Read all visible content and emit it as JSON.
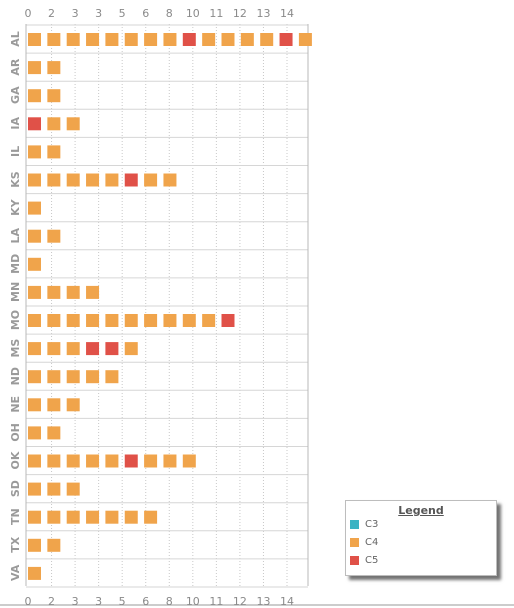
{
  "chart_data": {
    "type": "scatter",
    "x_ticks": [
      "0",
      "2",
      "3",
      "3",
      "5",
      "6",
      "8",
      "10",
      "11",
      "12",
      "13",
      "14"
    ],
    "categories": [
      "AL",
      "AR",
      "GA",
      "IA",
      "IL",
      "KS",
      "KY",
      "LA",
      "MD",
      "MN",
      "MO",
      "MS",
      "ND",
      "NE",
      "OH",
      "OK",
      "SD",
      "TN",
      "TX",
      "VA"
    ],
    "rows": [
      {
        "state": "AL",
        "cells": [
          "C4",
          "C4",
          "C4",
          "C4",
          "C4",
          "C4",
          "C4",
          "C4",
          "C5",
          "C4",
          "C4",
          "C4",
          "C4",
          "C5",
          "C4"
        ]
      },
      {
        "state": "AR",
        "cells": [
          "C4",
          "C4"
        ]
      },
      {
        "state": "GA",
        "cells": [
          "C4",
          "C4"
        ]
      },
      {
        "state": "IA",
        "cells": [
          "C5",
          "C4",
          "C4"
        ]
      },
      {
        "state": "IL",
        "cells": [
          "C4",
          "C4"
        ]
      },
      {
        "state": "KS",
        "cells": [
          "C4",
          "C4",
          "C4",
          "C4",
          "C4",
          "C5",
          "C4",
          "C4"
        ]
      },
      {
        "state": "KY",
        "cells": [
          "C4"
        ]
      },
      {
        "state": "LA",
        "cells": [
          "C4",
          "C4"
        ]
      },
      {
        "state": "MD",
        "cells": [
          "C4"
        ]
      },
      {
        "state": "MN",
        "cells": [
          "C4",
          "C4",
          "C4",
          "C4"
        ]
      },
      {
        "state": "MO",
        "cells": [
          "C4",
          "C4",
          "C4",
          "C4",
          "C4",
          "C4",
          "C4",
          "C4",
          "C4",
          "C4",
          "C5"
        ]
      },
      {
        "state": "MS",
        "cells": [
          "C4",
          "C4",
          "C4",
          "C5",
          "C5",
          "C4"
        ]
      },
      {
        "state": "ND",
        "cells": [
          "C4",
          "C4",
          "C4",
          "C4",
          "C4"
        ]
      },
      {
        "state": "NE",
        "cells": [
          "C4",
          "C4",
          "C4"
        ]
      },
      {
        "state": "OH",
        "cells": [
          "C4",
          "C4"
        ]
      },
      {
        "state": "OK",
        "cells": [
          "C4",
          "C4",
          "C4",
          "C4",
          "C4",
          "C5",
          "C4",
          "C4",
          "C4"
        ]
      },
      {
        "state": "SD",
        "cells": [
          "C4",
          "C4",
          "C4"
        ]
      },
      {
        "state": "TN",
        "cells": [
          "C4",
          "C4",
          "C4",
          "C4",
          "C4",
          "C4",
          "C4"
        ]
      },
      {
        "state": "TX",
        "cells": [
          "C4",
          "C4"
        ]
      },
      {
        "state": "VA",
        "cells": [
          "C4"
        ]
      }
    ],
    "grid": true,
    "legend_position": "bottom-right"
  },
  "legend": {
    "title": "Legend",
    "items": [
      {
        "label": "C3",
        "color": "#3bb3c3"
      },
      {
        "label": "C4",
        "color": "#f0a44b"
      },
      {
        "label": "C5",
        "color": "#e05148"
      }
    ]
  },
  "colors": {
    "C3": "#3bb3c3",
    "C4": "#f0a44b",
    "C5": "#e05148"
  }
}
